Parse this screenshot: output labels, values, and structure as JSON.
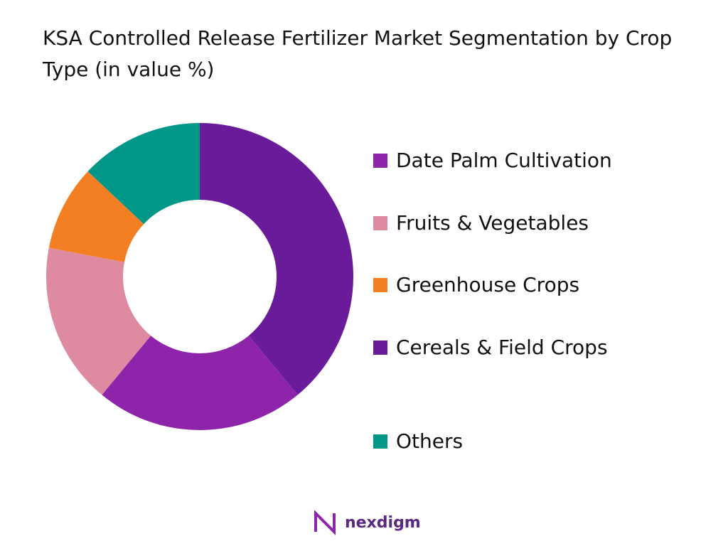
{
  "chart_data": {
    "type": "donut",
    "title": "KSA Controlled Release Fertilizer Market Segmentation by Crop Type (in value %)",
    "categories": [
      "Date Palm Cultivation",
      "Fruits & Vegetables",
      "Greenhouse Crops",
      "Cereals & Field Crops",
      "Others"
    ],
    "values": [
      22,
      17,
      9,
      39,
      13
    ],
    "colors": [
      "#8e24aa",
      "#de8aa0",
      "#f37f22",
      "#6a1b9a",
      "#009688"
    ]
  },
  "logo": "nexdigm"
}
